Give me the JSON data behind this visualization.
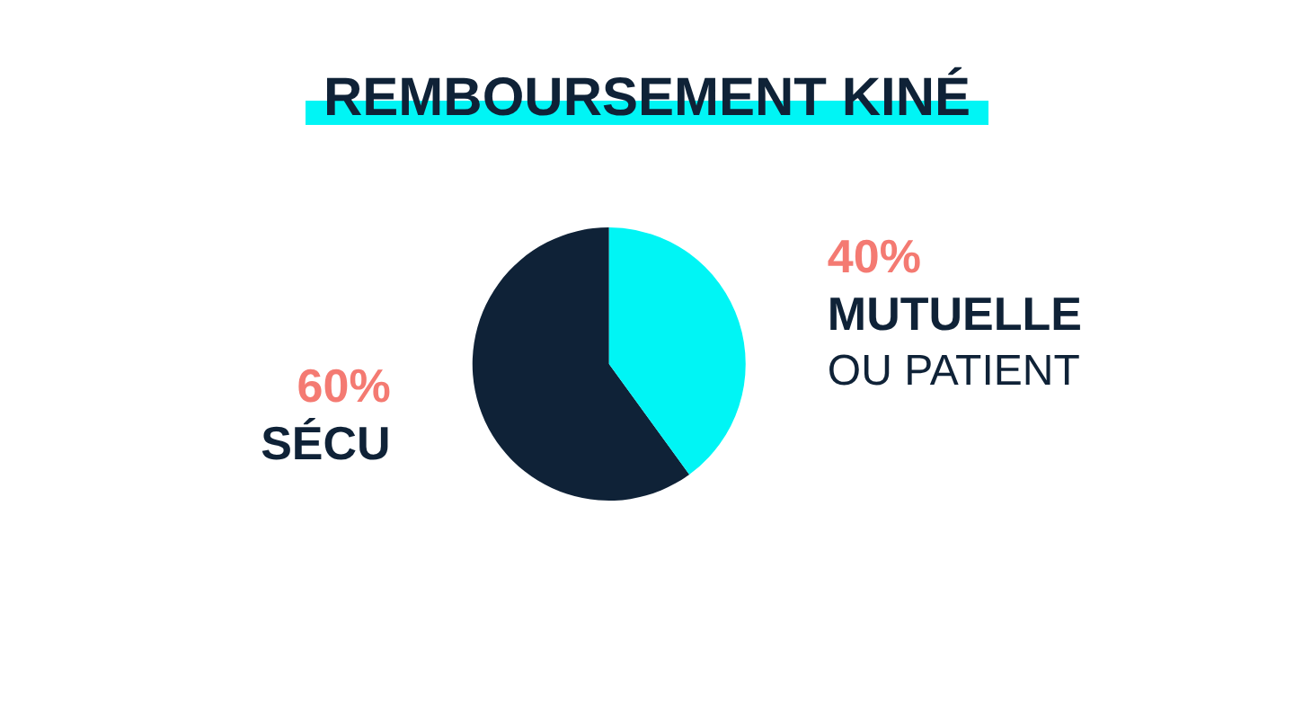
{
  "chart_data": {
    "type": "pie",
    "title": "REMBOURSEMENT KINÉ",
    "categories": [
      "SÉCU",
      "MUTUELLE\nOU PATIENT"
    ],
    "values": [
      60,
      40
    ],
    "colors": [
      "#0f2237",
      "#00f5f5"
    ],
    "value_labels": [
      "60%",
      "40%"
    ],
    "legend": false
  }
}
